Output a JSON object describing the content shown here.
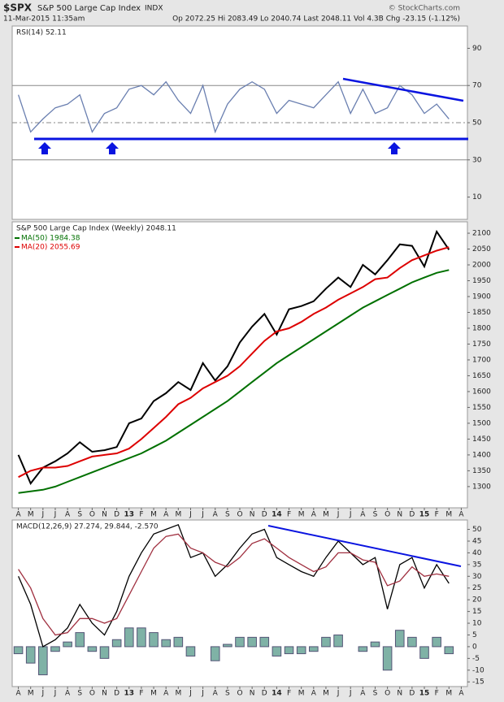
{
  "header": {
    "symbol": "$SPX",
    "name": "S&P 500 Large Cap Index",
    "exchange": "INDX",
    "date": "11-Mar-2015 11:35am",
    "quote": "Op 2072.25 Hi 2083.49 Lo 2040.74 Last 2048.11 Vol 4.3B Chg -23.15 (-1.12%)",
    "source": "© StockCharts.com"
  },
  "chart_data": [
    {
      "type": "line",
      "title": "RSI(14) 52.11",
      "ylim": [
        -2,
        102
      ],
      "yticks": [
        10,
        30,
        50,
        70,
        90
      ],
      "levels": [
        70,
        50,
        30
      ],
      "series": [
        {
          "color": "#6a7fb0",
          "values": [
            65,
            45,
            52,
            58,
            60,
            65,
            45,
            55,
            58,
            68,
            70,
            65,
            72,
            62,
            55,
            70,
            45,
            60,
            68,
            72,
            68,
            55,
            62,
            60,
            58,
            65,
            72,
            55,
            68,
            55,
            58,
            70,
            65,
            55,
            60,
            52,
            null
          ]
        }
      ]
    },
    {
      "type": "line",
      "title": "S&P 500 Large Cap Index (Weekly) 2048.11",
      "ylim": [
        1233,
        2136
      ],
      "yticks": [
        1300,
        1350,
        1400,
        1450,
        1500,
        1550,
        1600,
        1650,
        1700,
        1750,
        1800,
        1850,
        1900,
        1950,
        2000,
        2050,
        2100
      ],
      "categories": [
        "A",
        "M",
        "J",
        "J",
        "A",
        "S",
        "O",
        "N",
        "D",
        "13",
        "F",
        "M",
        "A",
        "M",
        "J",
        "J",
        "A",
        "S",
        "O",
        "N",
        "D",
        "14",
        "F",
        "M",
        "A",
        "M",
        "J",
        "J",
        "A",
        "S",
        "O",
        "N",
        "D",
        "15",
        "F",
        "M",
        "A"
      ],
      "series": [
        {
          "color": "#000000",
          "values": [
            1400,
            1310,
            1360,
            1380,
            1405,
            1440,
            1410,
            1415,
            1425,
            1500,
            1515,
            1570,
            1595,
            1630,
            1605,
            1690,
            1635,
            1680,
            1755,
            1805,
            1845,
            1780,
            1860,
            1870,
            1885,
            1925,
            1960,
            1930,
            2000,
            1970,
            2015,
            2065,
            2060,
            1995,
            2105,
            2048,
            null
          ]
        },
        {
          "name": "MA(50) 1984.38",
          "color": "#007000",
          "values": [
            1280,
            1285,
            1290,
            1300,
            1315,
            1330,
            1345,
            1360,
            1375,
            1390,
            1405,
            1425,
            1445,
            1470,
            1495,
            1520,
            1545,
            1570,
            1600,
            1630,
            1660,
            1690,
            1715,
            1740,
            1765,
            1790,
            1815,
            1840,
            1865,
            1885,
            1905,
            1925,
            1945,
            1960,
            1975,
            1984,
            null
          ]
        },
        {
          "name": "MA(20) 2055.69",
          "color": "#dd0000",
          "values": [
            1330,
            1350,
            1360,
            1360,
            1365,
            1380,
            1395,
            1400,
            1405,
            1420,
            1450,
            1485,
            1520,
            1560,
            1580,
            1610,
            1630,
            1650,
            1680,
            1720,
            1760,
            1790,
            1800,
            1820,
            1845,
            1865,
            1890,
            1910,
            1930,
            1955,
            1960,
            1990,
            2015,
            2030,
            2045,
            2056,
            null
          ]
        }
      ]
    },
    {
      "type": "line",
      "title": "MACD(12,26,9) 27.274, 29.844, -2.570",
      "ylim": [
        -17,
        54
      ],
      "yticks": [
        -15,
        -10,
        -5,
        0,
        5,
        10,
        15,
        20,
        25,
        30,
        35,
        40,
        45,
        50
      ],
      "categories": [
        "A",
        "M",
        "J",
        "J",
        "A",
        "S",
        "O",
        "N",
        "D",
        "13",
        "F",
        "M",
        "A",
        "M",
        "J",
        "J",
        "A",
        "S",
        "O",
        "N",
        "D",
        "14",
        "F",
        "M",
        "A",
        "M",
        "J",
        "J",
        "A",
        "S",
        "O",
        "N",
        "D",
        "15",
        "F",
        "M",
        "A"
      ],
      "series": [
        {
          "type": "bar",
          "color": "#7fb2a6",
          "values": [
            -3,
            -7,
            -12,
            -2,
            2,
            6,
            -2,
            -5,
            3,
            8,
            8,
            6,
            3,
            4,
            -4,
            0,
            -6,
            1,
            4,
            4,
            4,
            -4,
            -3,
            -3,
            -2,
            4,
            5,
            0,
            -2,
            2,
            -10,
            7,
            4,
            -5,
            4,
            -3,
            null
          ]
        },
        {
          "color": "#000000",
          "values": [
            30,
            18,
            0,
            3,
            8,
            18,
            10,
            5,
            15,
            30,
            40,
            48,
            50,
            52,
            38,
            40,
            30,
            35,
            42,
            48,
            50,
            38,
            35,
            32,
            30,
            38,
            45,
            40,
            35,
            38,
            16,
            35,
            38,
            25,
            35,
            27,
            null
          ]
        },
        {
          "color": "#a03040",
          "values": [
            33,
            25,
            12,
            5,
            6,
            12,
            12,
            10,
            12,
            22,
            32,
            42,
            47,
            48,
            42,
            40,
            36,
            34,
            38,
            44,
            46,
            42,
            38,
            35,
            32,
            34,
            40,
            40,
            37,
            36,
            26,
            28,
            34,
            30,
            31,
            30,
            null
          ]
        }
      ]
    }
  ]
}
